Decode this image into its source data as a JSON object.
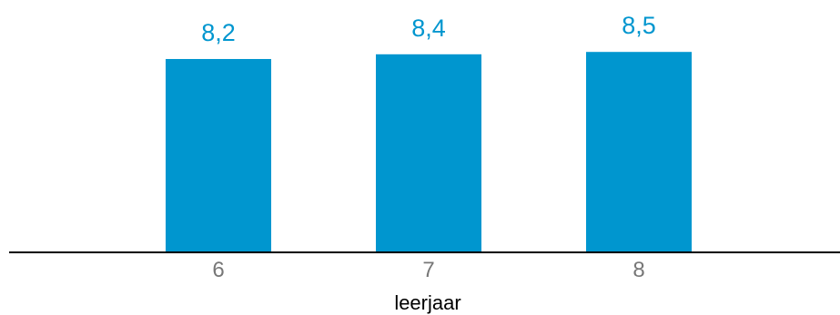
{
  "chart_data": {
    "type": "bar",
    "categories": [
      "6",
      "7",
      "8"
    ],
    "values": [
      8.2,
      8.4,
      8.5
    ],
    "value_labels": [
      "8,2",
      "8,4",
      "8,5"
    ],
    "xlabel": "leerjaar",
    "ylabel": "",
    "grid": false,
    "colors": {
      "bar": "#0096cf",
      "value_label": "#0096cf",
      "tick_label": "#777777",
      "axis": "#000000",
      "xlabel": "#000000"
    }
  }
}
